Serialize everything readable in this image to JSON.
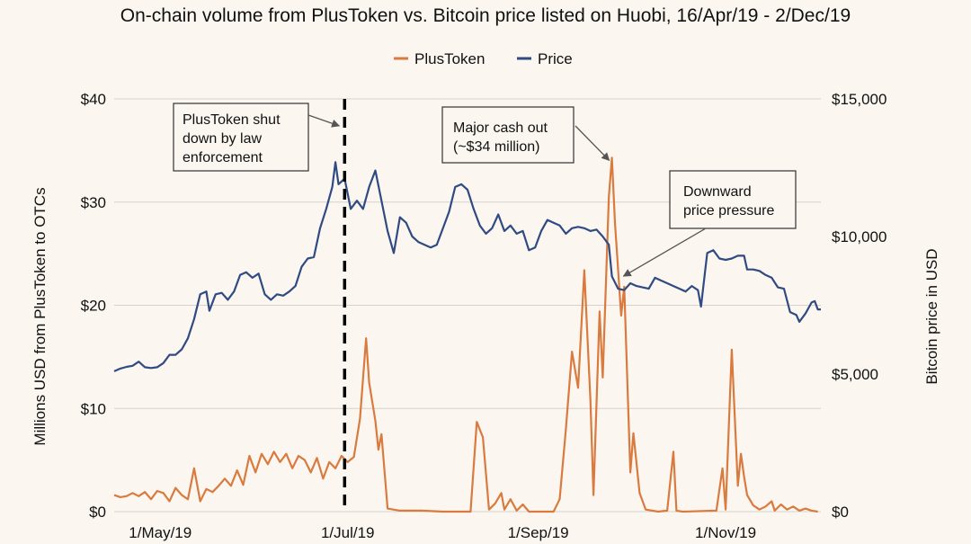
{
  "chart_data": {
    "type": "line",
    "title": "On-chain volume from PlusToken vs. Bitcoin price listed on Huobi, 16/Apr/19 - 2/Dec/19",
    "legend": {
      "position": "top-center"
    },
    "xaxis": {
      "range": [
        "2019-04-16",
        "2019-12-02"
      ],
      "ticks": [
        {
          "date": "2019-05-01",
          "label": "1/May/19"
        },
        {
          "date": "2019-07-01",
          "label": "1/Jul/19"
        },
        {
          "date": "2019-09-01",
          "label": "1/Sep/19"
        },
        {
          "date": "2019-11-01",
          "label": "1/Nov/19"
        }
      ]
    },
    "y_left": {
      "label": "Millions USD from PlusToken to OTCs",
      "range": [
        0,
        40
      ],
      "ticks": [
        0,
        10,
        20,
        30,
        40
      ],
      "tick_labels": [
        "$0",
        "$10",
        "$20",
        "$30",
        "$40"
      ]
    },
    "y_right": {
      "label": "Bitcoin price in USD",
      "range": [
        0,
        15000
      ],
      "ticks": [
        0,
        5000,
        10000,
        15000
      ],
      "tick_labels": [
        "$0",
        "$5,000",
        "$10,000",
        "$15,000"
      ]
    },
    "grid": {
      "horizontal": true,
      "vertical": false
    },
    "series": [
      {
        "name": "PlusToken",
        "color": "#d97a3e",
        "axis": "left",
        "points": [
          [
            "2019-04-16",
            1.6
          ],
          [
            "2019-04-18",
            1.4
          ],
          [
            "2019-04-20",
            1.5
          ],
          [
            "2019-04-22",
            1.8
          ],
          [
            "2019-04-24",
            1.5
          ],
          [
            "2019-04-26",
            1.9
          ],
          [
            "2019-04-28",
            1.2
          ],
          [
            "2019-04-30",
            2.0
          ],
          [
            "2019-05-02",
            1.8
          ],
          [
            "2019-05-04",
            1.0
          ],
          [
            "2019-05-06",
            2.3
          ],
          [
            "2019-05-08",
            1.6
          ],
          [
            "2019-05-10",
            1.2
          ],
          [
            "2019-05-12",
            4.2
          ],
          [
            "2019-05-14",
            1.0
          ],
          [
            "2019-05-16",
            2.2
          ],
          [
            "2019-05-18",
            1.9
          ],
          [
            "2019-05-20",
            2.5
          ],
          [
            "2019-05-22",
            3.2
          ],
          [
            "2019-05-24",
            2.5
          ],
          [
            "2019-05-26",
            4.0
          ],
          [
            "2019-05-28",
            2.6
          ],
          [
            "2019-05-30",
            5.4
          ],
          [
            "2019-06-01",
            3.8
          ],
          [
            "2019-06-03",
            5.6
          ],
          [
            "2019-06-05",
            4.6
          ],
          [
            "2019-06-07",
            5.8
          ],
          [
            "2019-06-09",
            4.8
          ],
          [
            "2019-06-11",
            5.6
          ],
          [
            "2019-06-13",
            4.2
          ],
          [
            "2019-06-15",
            5.4
          ],
          [
            "2019-06-17",
            5.0
          ],
          [
            "2019-06-19",
            3.8
          ],
          [
            "2019-06-21",
            5.2
          ],
          [
            "2019-06-23",
            3.2
          ],
          [
            "2019-06-25",
            4.8
          ],
          [
            "2019-06-27",
            4.2
          ],
          [
            "2019-06-29",
            5.4
          ],
          [
            "2019-07-01",
            4.8
          ],
          [
            "2019-07-03",
            5.3
          ],
          [
            "2019-07-05",
            9.0
          ],
          [
            "2019-07-07",
            16.8
          ],
          [
            "2019-07-08",
            12.5
          ],
          [
            "2019-07-10",
            8.8
          ],
          [
            "2019-07-11",
            6.0
          ],
          [
            "2019-07-12",
            7.5
          ],
          [
            "2019-07-14",
            0.3
          ],
          [
            "2019-07-18",
            0.1
          ],
          [
            "2019-07-25",
            0.1
          ],
          [
            "2019-08-01",
            0.0
          ],
          [
            "2019-08-10",
            0.0
          ],
          [
            "2019-08-12",
            8.7
          ],
          [
            "2019-08-14",
            7.2
          ],
          [
            "2019-08-16",
            0.2
          ],
          [
            "2019-08-18",
            0.8
          ],
          [
            "2019-08-20",
            1.8
          ],
          [
            "2019-08-21",
            0.2
          ],
          [
            "2019-08-23",
            1.2
          ],
          [
            "2019-08-25",
            0.1
          ],
          [
            "2019-08-27",
            0.7
          ],
          [
            "2019-08-29",
            0.0
          ],
          [
            "2019-09-06",
            0.0
          ],
          [
            "2019-09-08",
            1.2
          ],
          [
            "2019-09-10",
            8.0
          ],
          [
            "2019-09-12",
            15.5
          ],
          [
            "2019-09-14",
            12.0
          ],
          [
            "2019-09-16",
            23.4
          ],
          [
            "2019-09-18",
            10.8
          ],
          [
            "2019-09-19",
            1.6
          ],
          [
            "2019-09-21",
            19.4
          ],
          [
            "2019-09-22",
            13.0
          ],
          [
            "2019-09-24",
            30.5
          ],
          [
            "2019-09-25",
            34.3
          ],
          [
            "2019-09-26",
            28.0
          ],
          [
            "2019-09-28",
            19.0
          ],
          [
            "2019-09-29",
            21.8
          ],
          [
            "2019-10-01",
            3.8
          ],
          [
            "2019-10-02",
            7.6
          ],
          [
            "2019-10-04",
            1.8
          ],
          [
            "2019-10-06",
            0.2
          ],
          [
            "2019-10-10",
            0.0
          ],
          [
            "2019-10-13",
            0.1
          ],
          [
            "2019-10-15",
            5.8
          ],
          [
            "2019-10-16",
            0.1
          ],
          [
            "2019-10-18",
            0.0
          ],
          [
            "2019-10-29",
            0.1
          ],
          [
            "2019-10-31",
            4.2
          ],
          [
            "2019-11-01",
            0.2
          ],
          [
            "2019-11-03",
            15.7
          ],
          [
            "2019-11-05",
            2.5
          ],
          [
            "2019-11-06",
            5.6
          ],
          [
            "2019-11-07",
            3.4
          ],
          [
            "2019-11-08",
            1.6
          ],
          [
            "2019-11-10",
            0.6
          ],
          [
            "2019-11-12",
            0.2
          ],
          [
            "2019-11-14",
            0.5
          ],
          [
            "2019-11-16",
            1.0
          ],
          [
            "2019-11-17",
            0.1
          ],
          [
            "2019-11-19",
            0.7
          ],
          [
            "2019-11-21",
            0.2
          ],
          [
            "2019-11-23",
            0.5
          ],
          [
            "2019-11-25",
            0.1
          ],
          [
            "2019-11-27",
            0.3
          ],
          [
            "2019-11-29",
            0.1
          ],
          [
            "2019-12-01",
            0.0
          ]
        ]
      },
      {
        "name": "Price",
        "color": "#2f4b82",
        "axis": "right",
        "points": [
          [
            "2019-04-16",
            5100
          ],
          [
            "2019-04-18",
            5200
          ],
          [
            "2019-04-20",
            5260
          ],
          [
            "2019-04-22",
            5300
          ],
          [
            "2019-04-24",
            5450
          ],
          [
            "2019-04-26",
            5250
          ],
          [
            "2019-04-28",
            5220
          ],
          [
            "2019-04-30",
            5250
          ],
          [
            "2019-05-02",
            5400
          ],
          [
            "2019-05-04",
            5700
          ],
          [
            "2019-05-06",
            5700
          ],
          [
            "2019-05-08",
            5900
          ],
          [
            "2019-05-10",
            6300
          ],
          [
            "2019-05-12",
            7000
          ],
          [
            "2019-05-14",
            7900
          ],
          [
            "2019-05-16",
            8000
          ],
          [
            "2019-05-17",
            7300
          ],
          [
            "2019-05-19",
            7900
          ],
          [
            "2019-05-21",
            7950
          ],
          [
            "2019-05-23",
            7700
          ],
          [
            "2019-05-25",
            8000
          ],
          [
            "2019-05-27",
            8600
          ],
          [
            "2019-05-29",
            8700
          ],
          [
            "2019-05-31",
            8500
          ],
          [
            "2019-06-02",
            8650
          ],
          [
            "2019-06-04",
            7900
          ],
          [
            "2019-06-06",
            7700
          ],
          [
            "2019-06-08",
            7900
          ],
          [
            "2019-06-10",
            7850
          ],
          [
            "2019-06-12",
            8000
          ],
          [
            "2019-06-14",
            8200
          ],
          [
            "2019-06-16",
            8900
          ],
          [
            "2019-06-18",
            9200
          ],
          [
            "2019-06-20",
            9250
          ],
          [
            "2019-06-22",
            10300
          ],
          [
            "2019-06-24",
            11000
          ],
          [
            "2019-06-26",
            11800
          ],
          [
            "2019-06-27",
            12700
          ],
          [
            "2019-06-28",
            11900
          ],
          [
            "2019-06-30",
            12100
          ],
          [
            "2019-07-02",
            11000
          ],
          [
            "2019-07-04",
            11300
          ],
          [
            "2019-07-06",
            11000
          ],
          [
            "2019-07-08",
            11800
          ],
          [
            "2019-07-10",
            12400
          ],
          [
            "2019-07-12",
            11300
          ],
          [
            "2019-07-14",
            10200
          ],
          [
            "2019-07-16",
            9400
          ],
          [
            "2019-07-18",
            10700
          ],
          [
            "2019-07-20",
            10500
          ],
          [
            "2019-07-22",
            10000
          ],
          [
            "2019-07-24",
            9800
          ],
          [
            "2019-07-26",
            9700
          ],
          [
            "2019-07-28",
            9600
          ],
          [
            "2019-07-30",
            9700
          ],
          [
            "2019-08-01",
            10300
          ],
          [
            "2019-08-03",
            10900
          ],
          [
            "2019-08-05",
            11800
          ],
          [
            "2019-08-07",
            11900
          ],
          [
            "2019-08-09",
            11700
          ],
          [
            "2019-08-11",
            11000
          ],
          [
            "2019-08-13",
            10400
          ],
          [
            "2019-08-15",
            10100
          ],
          [
            "2019-08-17",
            10300
          ],
          [
            "2019-08-19",
            10800
          ],
          [
            "2019-08-21",
            10200
          ],
          [
            "2019-08-23",
            10400
          ],
          [
            "2019-08-25",
            10100
          ],
          [
            "2019-08-27",
            10200
          ],
          [
            "2019-08-29",
            9500
          ],
          [
            "2019-08-31",
            9600
          ],
          [
            "2019-09-02",
            10200
          ],
          [
            "2019-09-04",
            10600
          ],
          [
            "2019-09-06",
            10500
          ],
          [
            "2019-09-08",
            10400
          ],
          [
            "2019-09-10",
            10100
          ],
          [
            "2019-09-12",
            10300
          ],
          [
            "2019-09-14",
            10350
          ],
          [
            "2019-09-16",
            10300
          ],
          [
            "2019-09-18",
            10200
          ],
          [
            "2019-09-20",
            10250
          ],
          [
            "2019-09-22",
            10000
          ],
          [
            "2019-09-24",
            9700
          ],
          [
            "2019-09-25",
            8550
          ],
          [
            "2019-09-27",
            8100
          ],
          [
            "2019-09-29",
            8050
          ],
          [
            "2019-10-01",
            8300
          ],
          [
            "2019-10-03",
            8200
          ],
          [
            "2019-10-05",
            8150
          ],
          [
            "2019-10-07",
            8100
          ],
          [
            "2019-10-09",
            8500
          ],
          [
            "2019-10-11",
            8400
          ],
          [
            "2019-10-13",
            8300
          ],
          [
            "2019-10-15",
            8200
          ],
          [
            "2019-10-17",
            8100
          ],
          [
            "2019-10-19",
            8000
          ],
          [
            "2019-10-21",
            8200
          ],
          [
            "2019-10-23",
            8050
          ],
          [
            "2019-10-24",
            7450
          ],
          [
            "2019-10-26",
            9400
          ],
          [
            "2019-10-28",
            9500
          ],
          [
            "2019-10-30",
            9200
          ],
          [
            "2019-11-01",
            9150
          ],
          [
            "2019-11-03",
            9200
          ],
          [
            "2019-11-05",
            9300
          ],
          [
            "2019-11-07",
            9300
          ],
          [
            "2019-11-08",
            8800
          ],
          [
            "2019-11-10",
            8800
          ],
          [
            "2019-11-12",
            8750
          ],
          [
            "2019-11-14",
            8600
          ],
          [
            "2019-11-16",
            8500
          ],
          [
            "2019-11-18",
            8150
          ],
          [
            "2019-11-20",
            8100
          ],
          [
            "2019-11-22",
            7250
          ],
          [
            "2019-11-24",
            7150
          ],
          [
            "2019-11-25",
            6900
          ],
          [
            "2019-11-27",
            7200
          ],
          [
            "2019-11-29",
            7600
          ],
          [
            "2019-11-30",
            7650
          ],
          [
            "2019-12-01",
            7350
          ],
          [
            "2019-12-02",
            7350
          ]
        ]
      }
    ],
    "vline": {
      "date": "2019-06-30",
      "style": "dashed",
      "color": "#000000"
    },
    "annotations": [
      {
        "lines": [
          "PlusToken shut",
          "down by law",
          "enforcement"
        ],
        "target": {
          "date": "2019-06-30",
          "series": "left",
          "value": 37.5
        }
      },
      {
        "lines": [
          "Major cash out",
          "(~$34 million)"
        ],
        "target": {
          "date": "2019-09-25",
          "series": "left",
          "value": 34.3
        }
      },
      {
        "lines": [
          "Downward",
          "price pressure"
        ],
        "target": {
          "date": "2019-09-27",
          "series": "right",
          "value": 8100
        }
      }
    ]
  }
}
